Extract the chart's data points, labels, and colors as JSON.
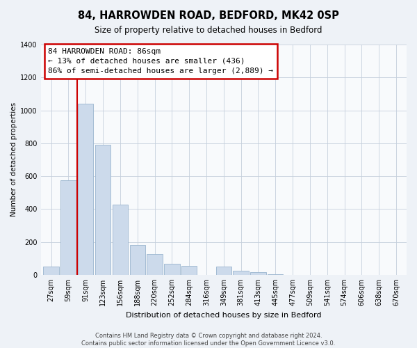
{
  "title": "84, HARROWDEN ROAD, BEDFORD, MK42 0SP",
  "subtitle": "Size of property relative to detached houses in Bedford",
  "xlabel": "Distribution of detached houses by size in Bedford",
  "ylabel": "Number of detached properties",
  "bar_labels": [
    "27sqm",
    "59sqm",
    "91sqm",
    "123sqm",
    "156sqm",
    "188sqm",
    "220sqm",
    "252sqm",
    "284sqm",
    "316sqm",
    "349sqm",
    "381sqm",
    "413sqm",
    "445sqm",
    "477sqm",
    "509sqm",
    "541sqm",
    "574sqm",
    "606sqm",
    "638sqm",
    "670sqm"
  ],
  "bar_values": [
    50,
    575,
    1040,
    790,
    425,
    180,
    125,
    65,
    55,
    0,
    50,
    25,
    15,
    5,
    0,
    0,
    0,
    0,
    0,
    0,
    0
  ],
  "bar_color": "#ccdaeb",
  "bar_edge_color": "#9ab5cf",
  "vline_x": 1.5,
  "vline_color": "#cc0000",
  "annotation_text": "84 HARROWDEN ROAD: 86sqm\n← 13% of detached houses are smaller (436)\n86% of semi-detached houses are larger (2,889) →",
  "annotation_box_facecolor": "#ffffff",
  "annotation_box_edgecolor": "#cc0000",
  "ylim": [
    0,
    1400
  ],
  "yticks": [
    0,
    200,
    400,
    600,
    800,
    1000,
    1200,
    1400
  ],
  "footer_line1": "Contains HM Land Registry data © Crown copyright and database right 2024.",
  "footer_line2": "Contains public sector information licensed under the Open Government Licence v3.0.",
  "bg_color": "#eef2f7",
  "plot_bg_color": "#f8fafc",
  "grid_color": "#c5d0dc",
  "title_fontsize": 10.5,
  "subtitle_fontsize": 8.5,
  "xlabel_fontsize": 8,
  "ylabel_fontsize": 7.5,
  "tick_fontsize": 7,
  "footer_fontsize": 6,
  "annotation_fontsize": 8
}
